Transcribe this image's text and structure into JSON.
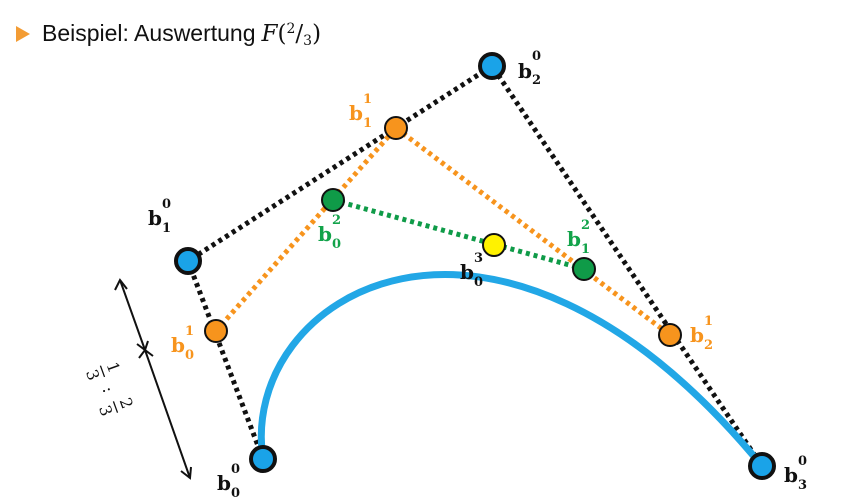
{
  "header": {
    "text": "Beispiel: Auswertung",
    "fn": "F",
    "open": "(",
    "num": "2",
    "slash": "/",
    "den": "3",
    "close": ")"
  },
  "labels": {
    "b": "b",
    "b00_sup": "0",
    "b00_sub": "0",
    "b10_sup": "0",
    "b10_sub": "1",
    "b20_sup": "0",
    "b20_sub": "2",
    "b30_sup": "0",
    "b30_sub": "3",
    "b01_sup": "1",
    "b01_sub": "0",
    "b11_sup": "1",
    "b11_sub": "1",
    "b21_sup": "1",
    "b21_sub": "2",
    "b02_sup": "2",
    "b02_sub": "0",
    "b12_sup": "2",
    "b12_sub": "1",
    "b03_sup": "3",
    "b03_sub": "0"
  },
  "ratio": {
    "one": "1",
    "three_a": "3",
    "colon": ":",
    "two": "2",
    "three_b": "3"
  },
  "colors": {
    "control": "#1aa3e8",
    "level1": "#f7941d",
    "level2": "#0f9b48",
    "result": "#fff200",
    "curve": "#22a7e6",
    "black_poly": "#111111",
    "level1_text": "#f7941d",
    "level2_text": "#12a34a",
    "bullet": "#f39c34"
  },
  "icons": {
    "bullet": "triangle-bullet-icon"
  }
}
